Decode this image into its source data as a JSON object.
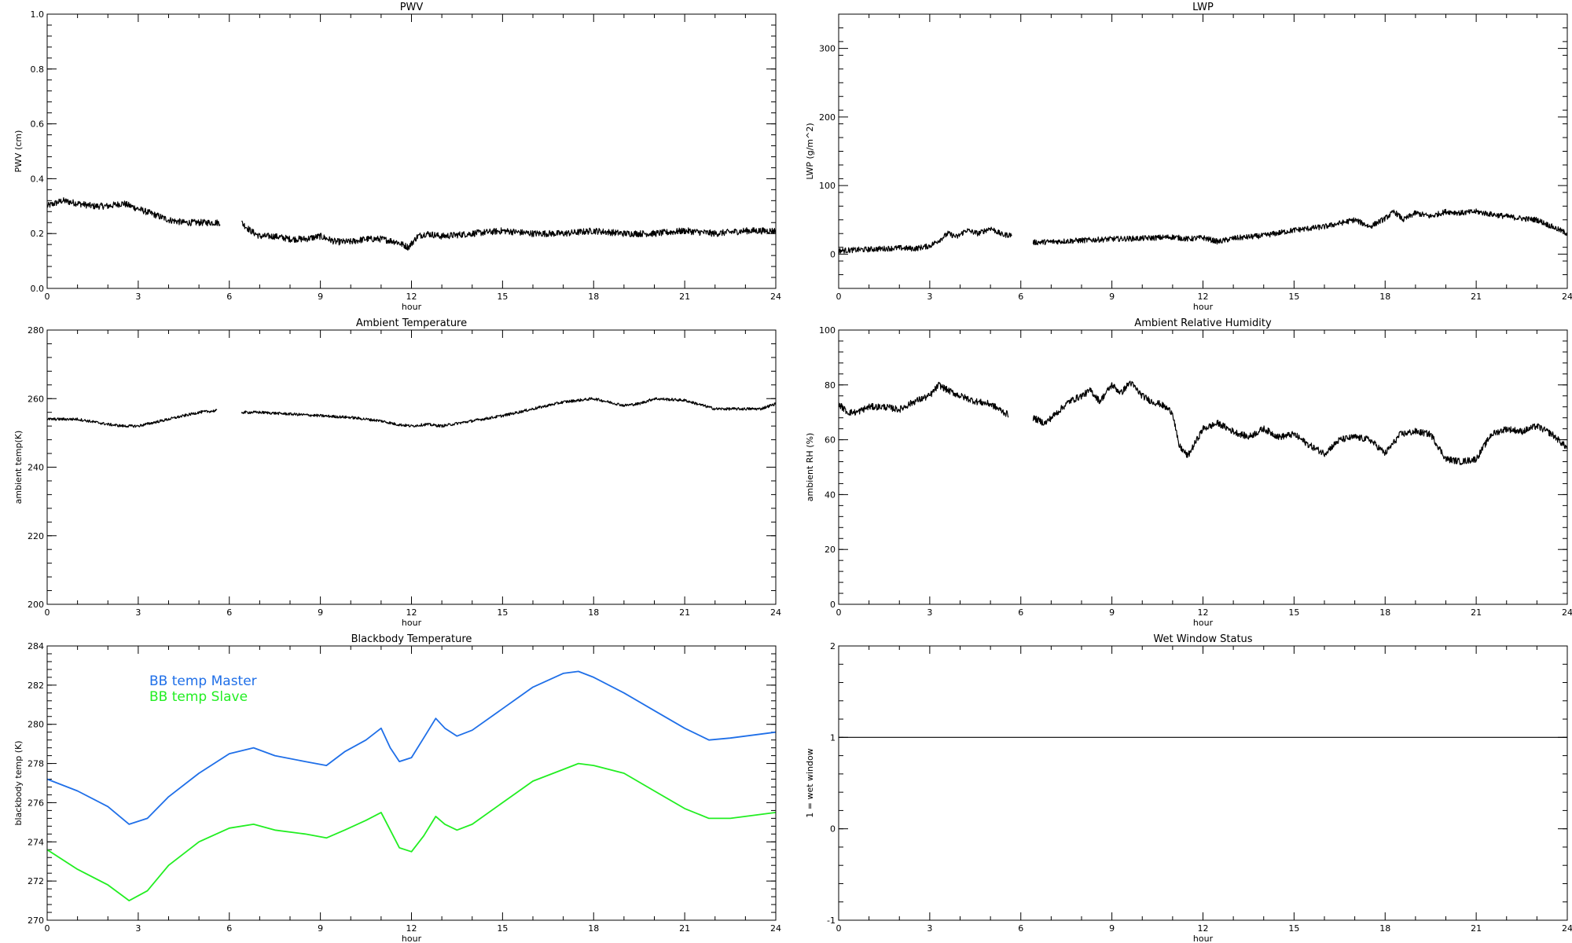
{
  "chart_data": [
    {
      "type": "line",
      "title": "PWV",
      "xlabel": "hour",
      "ylabel": "PWV (cm)",
      "xlim": [
        0,
        24
      ],
      "ylim": [
        0.0,
        1.0
      ],
      "xticks": [
        0,
        3,
        6,
        9,
        12,
        15,
        18,
        21,
        24
      ],
      "yticks": [
        0.0,
        0.2,
        0.4,
        0.6,
        0.8,
        1.0
      ],
      "ytick_labels": [
        "0.0",
        "0.2",
        "0.4",
        "0.6",
        "0.8",
        "1.0"
      ],
      "noise": 0.012,
      "series": [
        {
          "color": "#000000",
          "gap": [
            5.7,
            6.4
          ],
          "x": [
            0,
            0.5,
            1,
            1.5,
            2,
            2.5,
            3,
            3.5,
            4,
            4.5,
            5,
            5.5,
            5.7,
            6.4,
            6.7,
            7,
            7.5,
            8,
            8.5,
            9,
            9.5,
            10,
            10.5,
            11,
            11.5,
            11.9,
            12.2,
            12.5,
            13,
            14,
            15,
            16,
            17,
            18,
            19,
            20,
            21,
            22,
            23,
            24
          ],
          "values": [
            0.3,
            0.32,
            0.31,
            0.3,
            0.3,
            0.31,
            0.29,
            0.27,
            0.25,
            0.24,
            0.24,
            0.24,
            0.24,
            0.24,
            0.21,
            0.19,
            0.19,
            0.18,
            0.18,
            0.19,
            0.17,
            0.17,
            0.18,
            0.18,
            0.17,
            0.15,
            0.19,
            0.2,
            0.19,
            0.2,
            0.21,
            0.2,
            0.2,
            0.21,
            0.2,
            0.2,
            0.21,
            0.2,
            0.21,
            0.21
          ]
        }
      ]
    },
    {
      "type": "line",
      "title": "LWP",
      "xlabel": "hour",
      "ylabel": "LWP (g/m^2)",
      "xlim": [
        0,
        24
      ],
      "ylim": [
        -50,
        350
      ],
      "xticks": [
        0,
        3,
        6,
        9,
        12,
        15,
        18,
        21,
        24
      ],
      "yticks": [
        0,
        100,
        200,
        300
      ],
      "ytick_labels": [
        "0",
        "100",
        "200",
        "300"
      ],
      "noise": 4,
      "series": [
        {
          "color": "#000000",
          "gap": [
            5.7,
            6.4
          ],
          "x": [
            0,
            0.5,
            1,
            1.5,
            2,
            2.5,
            3,
            3.3,
            3.6,
            3.9,
            4.2,
            4.6,
            5.0,
            5.4,
            5.7,
            6.4,
            7,
            8,
            9,
            10,
            11,
            11.5,
            12,
            12.5,
            13,
            14,
            15,
            16,
            17,
            17.5,
            18,
            18.3,
            18.6,
            19,
            19.5,
            20,
            20.5,
            21,
            21.5,
            22,
            22.5,
            23,
            23.5,
            24
          ],
          "values": [
            5,
            6,
            7,
            8,
            9,
            8,
            12,
            20,
            30,
            25,
            35,
            30,
            38,
            28,
            28,
            17,
            18,
            20,
            22,
            23,
            25,
            22,
            24,
            18,
            23,
            27,
            35,
            40,
            50,
            40,
            52,
            62,
            50,
            60,
            55,
            62,
            60,
            62,
            58,
            55,
            52,
            50,
            40,
            30
          ]
        }
      ]
    },
    {
      "type": "line",
      "title": "Ambient Temperature",
      "xlabel": "hour",
      "ylabel": "ambient temp(K)",
      "xlim": [
        0,
        24
      ],
      "ylim": [
        200,
        280
      ],
      "xticks": [
        0,
        3,
        6,
        9,
        12,
        15,
        18,
        21,
        24
      ],
      "yticks": [
        200,
        220,
        240,
        260,
        280
      ],
      "ytick_labels": [
        "200",
        "220",
        "240",
        "260",
        "280"
      ],
      "noise": 0.4,
      "series": [
        {
          "color": "#000000",
          "gap": [
            5.6,
            6.4
          ],
          "x": [
            0,
            1,
            2,
            2.5,
            3,
            4,
            5,
            5.6,
            6.4,
            7,
            8,
            9,
            10,
            11,
            11.5,
            12,
            12.5,
            13,
            14,
            15,
            16,
            17,
            17.5,
            18,
            19,
            19.5,
            20,
            21,
            22,
            23,
            23.5,
            24
          ],
          "values": [
            254,
            254,
            252.5,
            252,
            252,
            254,
            256,
            256.5,
            256,
            256,
            255.5,
            255,
            254.5,
            253.5,
            252.5,
            252,
            252.5,
            252,
            253.5,
            255,
            257,
            259,
            259.5,
            260,
            258,
            258.5,
            260,
            259.5,
            257,
            257,
            257,
            258.5
          ]
        }
      ]
    },
    {
      "type": "line",
      "title": "Ambient Relative Humidity",
      "xlabel": "hour",
      "ylabel": "ambient RH (%)",
      "xlim": [
        0,
        24
      ],
      "ylim": [
        0,
        100
      ],
      "xticks": [
        0,
        3,
        6,
        9,
        12,
        15,
        18,
        21,
        24
      ],
      "yticks": [
        0,
        20,
        40,
        60,
        80,
        100
      ],
      "ytick_labels": [
        "0",
        "20",
        "40",
        "60",
        "80",
        "100"
      ],
      "noise": 1.2,
      "series": [
        {
          "color": "#000000",
          "gap": [
            5.6,
            6.4
          ],
          "x": [
            0,
            0.3,
            0.6,
            1,
            1.5,
            2,
            2.5,
            3,
            3.3,
            3.6,
            4,
            4.5,
            5,
            5.3,
            5.6,
            6.4,
            6.8,
            7.2,
            7.6,
            8,
            8.3,
            8.6,
            9,
            9.3,
            9.6,
            10,
            10.3,
            10.6,
            11,
            11.2,
            11.5,
            11.8,
            12,
            12.5,
            13,
            13.5,
            14,
            14.5,
            15,
            15.5,
            16,
            16.5,
            17,
            17.5,
            18,
            18.5,
            19,
            19.5,
            20,
            20.5,
            21,
            21.5,
            22,
            22.5,
            23,
            23.5,
            24
          ],
          "values": [
            73,
            70,
            70,
            72,
            72,
            71,
            74,
            76,
            80,
            78,
            76,
            74,
            73,
            71,
            69,
            68,
            66,
            70,
            74,
            76,
            78,
            74,
            80,
            77,
            81,
            76,
            74,
            73,
            70,
            58,
            54,
            60,
            64,
            66,
            63,
            61,
            64,
            61,
            62,
            58,
            55,
            60,
            61,
            60,
            55,
            62,
            63,
            62,
            53,
            52,
            53,
            62,
            64,
            63,
            65,
            62,
            57
          ]
        }
      ]
    },
    {
      "type": "line",
      "title": "Blackbody Temperature",
      "xlabel": "hour",
      "ylabel": "blackbody temp (K)",
      "xlim": [
        0,
        24
      ],
      "ylim": [
        270,
        284
      ],
      "xticks": [
        0,
        3,
        6,
        9,
        12,
        15,
        18,
        21,
        24
      ],
      "yticks": [
        270,
        272,
        274,
        276,
        278,
        280,
        282,
        284
      ],
      "ytick_labels": [
        "270",
        "272",
        "274",
        "276",
        "278",
        "280",
        "282",
        "284"
      ],
      "noise": 0,
      "legend": [
        "BB temp Master",
        "BB temp Slave"
      ],
      "series": [
        {
          "name": "BB temp Master",
          "color": "#1f6fe8",
          "x": [
            0,
            1,
            2,
            2.7,
            3.3,
            4,
            5,
            6,
            6.8,
            7.5,
            8.5,
            9.2,
            9.8,
            10.5,
            11,
            11.3,
            11.6,
            12,
            12.4,
            12.8,
            13.1,
            13.5,
            14,
            15,
            16,
            17,
            17.5,
            18,
            19,
            20,
            21,
            21.8,
            22.5,
            23,
            24
          ],
          "values": [
            277.2,
            276.6,
            275.8,
            274.9,
            275.2,
            276.3,
            277.5,
            278.5,
            278.8,
            278.4,
            278.1,
            277.9,
            278.6,
            279.2,
            279.8,
            278.8,
            278.1,
            278.3,
            279.3,
            280.3,
            279.8,
            279.4,
            279.7,
            280.8,
            281.9,
            282.6,
            282.7,
            282.4,
            281.6,
            280.7,
            279.8,
            279.2,
            279.3,
            279.4,
            279.6
          ]
        },
        {
          "name": "BB temp Slave",
          "color": "#22ee22",
          "x": [
            0,
            1,
            2,
            2.7,
            3.3,
            4,
            5,
            6,
            6.8,
            7.5,
            8.5,
            9.2,
            9.8,
            10.5,
            11,
            11.3,
            11.6,
            12,
            12.4,
            12.8,
            13.1,
            13.5,
            14,
            15,
            16,
            17,
            17.5,
            18,
            19,
            20,
            21,
            21.8,
            22.5,
            23,
            24
          ],
          "values": [
            273.6,
            272.6,
            271.8,
            271.0,
            271.5,
            272.8,
            274.0,
            274.7,
            274.9,
            274.6,
            274.4,
            274.2,
            274.6,
            275.1,
            275.5,
            274.6,
            273.7,
            273.5,
            274.3,
            275.3,
            274.9,
            274.6,
            274.9,
            276.0,
            277.1,
            277.7,
            278.0,
            277.9,
            277.5,
            276.6,
            275.7,
            275.2,
            275.2,
            275.3,
            275.5
          ]
        }
      ]
    },
    {
      "type": "line",
      "title": "Wet Window Status",
      "xlabel": "hour",
      "ylabel": "1 = wet window",
      "xlim": [
        0,
        24
      ],
      "ylim": [
        -1,
        2
      ],
      "xticks": [
        0,
        3,
        6,
        9,
        12,
        15,
        18,
        21,
        24
      ],
      "yticks": [
        -1,
        0,
        1,
        2
      ],
      "ytick_labels": [
        "-1",
        "0",
        "1",
        "2"
      ],
      "noise": 0,
      "series": [
        {
          "color": "#000000",
          "x": [
            0,
            24
          ],
          "values": [
            1,
            1
          ]
        }
      ]
    }
  ]
}
